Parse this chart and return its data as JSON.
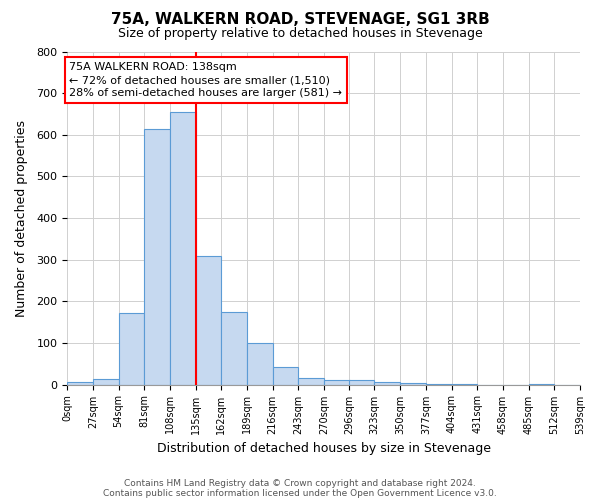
{
  "title": "75A, WALKERN ROAD, STEVENAGE, SG1 3RB",
  "subtitle": "Size of property relative to detached houses in Stevenage",
  "xlabel": "Distribution of detached houses by size in Stevenage",
  "ylabel": "Number of detached properties",
  "bin_edges": [
    0,
    27,
    54,
    81,
    108,
    135,
    162,
    189,
    216,
    243,
    270,
    296,
    323,
    350,
    377,
    404,
    431,
    458,
    485,
    512,
    539
  ],
  "bar_heights": [
    5,
    13,
    172,
    615,
    655,
    310,
    175,
    100,
    42,
    15,
    10,
    10,
    5,
    3,
    2,
    1,
    0,
    0,
    1,
    0
  ],
  "bar_color": "#c6d9f0",
  "bar_edge_color": "#5b9bd5",
  "vline_x": 135,
  "vline_color": "red",
  "ylim": [
    0,
    800
  ],
  "yticks": [
    0,
    100,
    200,
    300,
    400,
    500,
    600,
    700,
    800
  ],
  "annotation_line1": "75A WALKERN ROAD: 138sqm",
  "annotation_line2": "← 72% of detached houses are smaller (1,510)",
  "annotation_line3": "28% of semi-detached houses are larger (581) →",
  "footer_line1": "Contains HM Land Registry data © Crown copyright and database right 2024.",
  "footer_line2": "Contains public sector information licensed under the Open Government Licence v3.0.",
  "background_color": "#ffffff",
  "grid_color": "#d0d0d0",
  "title_fontsize": 11,
  "subtitle_fontsize": 9,
  "ylabel_fontsize": 9,
  "xlabel_fontsize": 9,
  "tick_fontsize": 7,
  "annotation_fontsize": 8,
  "footer_fontsize": 6.5
}
